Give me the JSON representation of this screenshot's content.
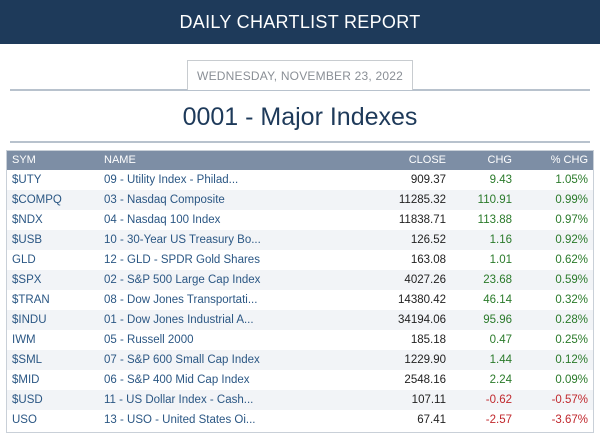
{
  "header": {
    "title": "DAILY CHARTLIST REPORT"
  },
  "date": "WEDNESDAY, NOVEMBER 23, 2022",
  "list_title": "0001 - Major Indexes",
  "columns": {
    "sym": "SYM",
    "name": "NAME",
    "close": "CLOSE",
    "chg": "CHG",
    "pct": "% CHG"
  },
  "colors": {
    "header_bg": "#1e3a5a",
    "table_header_bg": "#7d8ea5",
    "positive": "#2a7a2a",
    "negative": "#c0282d",
    "link": "#2b5784"
  },
  "rows": [
    {
      "sym": "$UTY",
      "name": "09 - Utility Index - Philad...",
      "close": "909.37",
      "chg": "9.43",
      "pct": "1.05%",
      "dir": "up"
    },
    {
      "sym": "$COMPQ",
      "name": "03 - Nasdaq Composite",
      "close": "11285.32",
      "chg": "110.91",
      "pct": "0.99%",
      "dir": "up"
    },
    {
      "sym": "$NDX",
      "name": "04 - Nasdaq 100 Index",
      "close": "11838.71",
      "chg": "113.88",
      "pct": "0.97%",
      "dir": "up"
    },
    {
      "sym": "$USB",
      "name": "10 - 30-Year US Treasury Bo...",
      "close": "126.52",
      "chg": "1.16",
      "pct": "0.92%",
      "dir": "up"
    },
    {
      "sym": "GLD",
      "name": "12 - GLD - SPDR Gold Shares",
      "close": "163.08",
      "chg": "1.01",
      "pct": "0.62%",
      "dir": "up"
    },
    {
      "sym": "$SPX",
      "name": "02 - S&P 500 Large Cap Index",
      "close": "4027.26",
      "chg": "23.68",
      "pct": "0.59%",
      "dir": "up"
    },
    {
      "sym": "$TRAN",
      "name": "08 - Dow Jones Transportati...",
      "close": "14380.42",
      "chg": "46.14",
      "pct": "0.32%",
      "dir": "up"
    },
    {
      "sym": "$INDU",
      "name": "01 - Dow Jones Industrial A...",
      "close": "34194.06",
      "chg": "95.96",
      "pct": "0.28%",
      "dir": "up"
    },
    {
      "sym": "IWM",
      "name": "05 - Russell 2000",
      "close": "185.18",
      "chg": "0.47",
      "pct": "0.25%",
      "dir": "up"
    },
    {
      "sym": "$SML",
      "name": "07 - S&P 600 Small Cap Index",
      "close": "1229.90",
      "chg": "1.44",
      "pct": "0.12%",
      "dir": "up"
    },
    {
      "sym": "$MID",
      "name": "06 - S&P 400 Mid Cap Index",
      "close": "2548.16",
      "chg": "2.24",
      "pct": "0.09%",
      "dir": "up"
    },
    {
      "sym": "$USD",
      "name": "11 - US Dollar Index - Cash...",
      "close": "107.11",
      "chg": "-0.62",
      "pct": "-0.57%",
      "dir": "down"
    },
    {
      "sym": "USO",
      "name": "13 - USO - United States Oi...",
      "close": "67.41",
      "chg": "-2.57",
      "pct": "-3.67%",
      "dir": "down"
    }
  ]
}
